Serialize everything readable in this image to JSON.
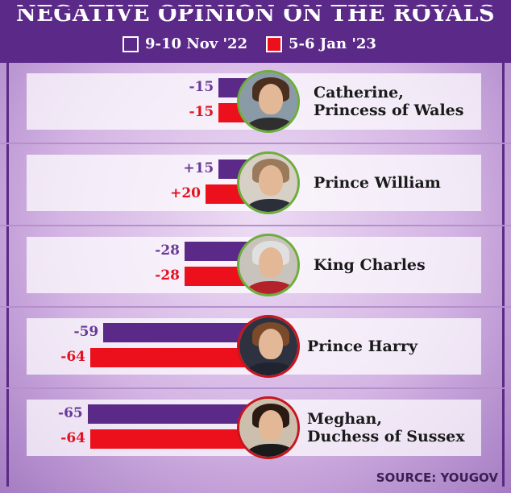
{
  "title": "NEGATIVE OPINION ON THE ROYALS",
  "legend": [
    {
      "label": "9-10 Nov '22",
      "color": "#5b2a89"
    },
    {
      "label": "5-6 Jan '23",
      "color": "#ec0f1c"
    }
  ],
  "source": "SOURCE: YOUGOV",
  "colors": {
    "purple": "#5b2a89",
    "red": "#ec0f1c",
    "positive_ring": "#6cae3c",
    "negative_ring": "#c8141e"
  },
  "chart_data": {
    "type": "bar",
    "orientation": "horizontal",
    "title": "NEGATIVE OPINION ON THE ROYALS",
    "categories": [
      "Catherine, Princess of Wales",
      "Prince William",
      "King Charles",
      "Prince Harry",
      "Meghan, Duchess of Sussex"
    ],
    "series": [
      {
        "name": "9-10 Nov '22",
        "color": "#5b2a89",
        "values": [
          -15,
          15,
          -28,
          -59,
          -65
        ],
        "labels": [
          "-15",
          "+15",
          "-28",
          "-59",
          "-65"
        ]
      },
      {
        "name": "5-6 Jan '23",
        "color": "#ec0f1c",
        "values": [
          -15,
          20,
          -28,
          -64,
          -64
        ],
        "labels": [
          "-15",
          "+20",
          "-28",
          "-64",
          "-64"
        ]
      }
    ],
    "legend_position": "top",
    "grid": false
  },
  "rows": [
    {
      "name_lines": [
        "Catherine,",
        "Princess of Wales"
      ],
      "portrait": "catherine-portrait",
      "ring": "positive"
    },
    {
      "name_lines": [
        "Prince William"
      ],
      "portrait": "william-portrait",
      "ring": "positive"
    },
    {
      "name_lines": [
        "King Charles"
      ],
      "portrait": "charles-portrait",
      "ring": "positive"
    },
    {
      "name_lines": [
        "Prince Harry"
      ],
      "portrait": "harry-portrait",
      "ring": "negative"
    },
    {
      "name_lines": [
        "Meghan,",
        "Duchess of Sussex"
      ],
      "portrait": "meghan-portrait",
      "ring": "negative"
    }
  ]
}
